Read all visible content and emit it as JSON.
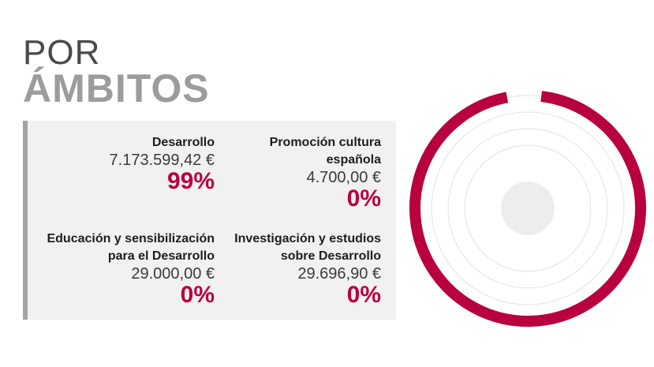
{
  "heading": {
    "line1": "POR",
    "line2": "ÁMBITOS"
  },
  "items": [
    {
      "label": "Desarrollo",
      "amount": "7.173.599,42 €",
      "percent": "99%"
    },
    {
      "label": "Promoción cultura española",
      "amount": "4.700,00 €",
      "percent": "0%"
    },
    {
      "label": "Educación y sensibilización para el Desarrollo",
      "amount": "29.000,00 €",
      "percent": "0%"
    },
    {
      "label": "Investigación y estudios sobre Desarrollo",
      "amount": "29.696,90 €",
      "percent": "0%"
    }
  ],
  "chart_data": {
    "type": "radial-bar",
    "categories": [
      "Desarrollo",
      "Promoción cultura española",
      "Educación y sensibilización para el Desarrollo",
      "Investigación y estudios sobre Desarrollo"
    ],
    "values": [
      7173599.42,
      4700.0,
      29000.0,
      29696.9
    ],
    "percent_values": [
      99,
      0,
      0,
      0
    ],
    "colors": {
      "accent": "#b8003f",
      "track": "#e2e2e2",
      "center": "#ededee",
      "text": "#1e1e1e"
    }
  }
}
